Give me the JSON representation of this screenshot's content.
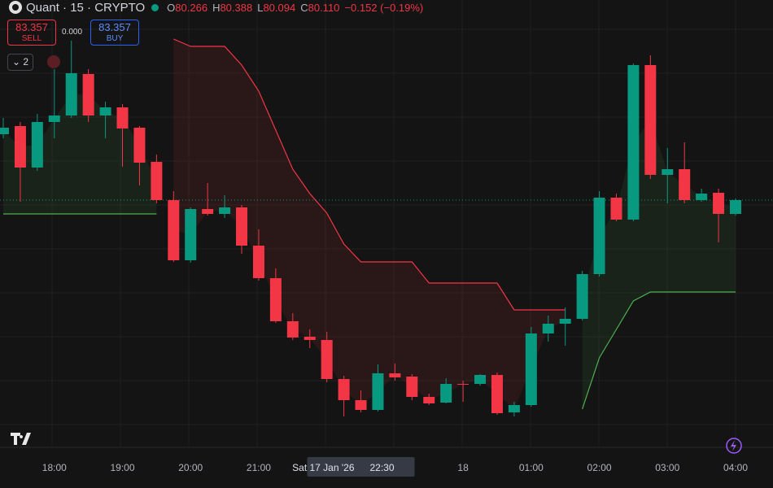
{
  "header": {
    "symbol": "Quant · 15 · CRYPTO",
    "o_label": "O",
    "open": "80.266",
    "h_label": "H",
    "high": "80.388",
    "l_label": "L",
    "low": "80.094",
    "c_label": "C",
    "close": "80.110",
    "change": "−0.152 (−0.19%)"
  },
  "trade": {
    "sell_price": "83.357",
    "sell_label": "SELL",
    "spread": "0.000",
    "buy_price": "83.357",
    "buy_label": "BUY"
  },
  "indicators_count": "2",
  "chart_data": {
    "type": "candlestick",
    "up_color": "#089981",
    "down_color": "#f23645",
    "ylim": [
      75,
      86
    ],
    "crosshair_date": "Sat 17 Jan '26",
    "crosshair_index": 21,
    "last_price": 81.08,
    "categories": [
      null,
      null,
      null,
      "18:00",
      null,
      null,
      null,
      "19:00",
      null,
      null,
      null,
      "20:00",
      null,
      null,
      null,
      "21:00",
      null,
      null,
      null,
      null,
      null,
      "22:30",
      null,
      null,
      null,
      null,
      null,
      "18",
      null,
      null,
      null,
      "01:00",
      null,
      null,
      null,
      "02:00",
      null,
      null,
      null,
      "03:00",
      null,
      null,
      null,
      "04:00"
    ],
    "open": [
      82.7,
      82.9,
      81.88,
      83.0,
      83.16,
      84.18,
      83.16,
      83.36,
      82.86,
      82.02,
      81.08,
      79.6,
      80.86,
      80.74,
      80.9,
      79.96,
      79.16,
      78.1,
      77.72,
      77.64,
      76.68,
      76.16,
      75.92,
      76.82,
      76.74,
      76.24,
      76.1,
      76.56,
      76.56,
      76.78,
      75.86,
      76.04,
      77.8,
      78.04,
      78.16,
      79.26,
      81.14,
      80.6,
      84.4,
      81.7,
      81.84,
      81.08,
      81.26,
      80.74
    ],
    "high": [
      83.1,
      83.0,
      83.2,
      84.3,
      85.0,
      84.3,
      83.5,
      83.44,
      82.9,
      82.2,
      81.3,
      80.9,
      81.5,
      81.2,
      80.96,
      80.36,
      79.4,
      78.3,
      77.9,
      77.84,
      76.76,
      76.4,
      77.04,
      77.06,
      76.8,
      76.32,
      76.7,
      76.64,
      76.8,
      76.84,
      76.12,
      77.96,
      78.24,
      78.44,
      79.34,
      81.3,
      81.24,
      84.44,
      84.64,
      82.36,
      82.5,
      81.36,
      81.36,
      81.12
    ],
    "low": [
      82.6,
      81.04,
      81.8,
      82.6,
      83.1,
      83.0,
      82.6,
      81.9,
      81.44,
      81.0,
      79.56,
      79.54,
      80.7,
      80.64,
      79.76,
      79.1,
      78.06,
      77.64,
      77.44,
      76.6,
      75.76,
      75.86,
      75.88,
      76.64,
      76.16,
      76.04,
      76.08,
      76.12,
      76.52,
      75.8,
      75.76,
      76.0,
      77.6,
      77.5,
      78.12,
      79.2,
      80.56,
      80.56,
      81.6,
      81.0,
      81.0,
      81.04,
      80.04,
      80.7
    ],
    "close": [
      82.86,
      81.88,
      83.0,
      83.16,
      84.2,
      83.16,
      83.36,
      82.84,
      82.0,
      81.08,
      79.6,
      80.86,
      80.74,
      80.9,
      79.96,
      79.16,
      78.1,
      77.7,
      77.64,
      76.68,
      76.16,
      75.92,
      76.82,
      76.72,
      76.24,
      76.08,
      76.56,
      76.54,
      76.78,
      75.84,
      76.04,
      77.8,
      78.04,
      78.16,
      79.26,
      81.14,
      80.6,
      84.4,
      81.7,
      81.84,
      81.08,
      81.24,
      80.74,
      81.08
    ],
    "series": [
      {
        "color": "#f23645",
        "values": [
          null,
          null,
          null,
          null,
          null,
          null,
          null,
          null,
          null,
          null,
          85.04,
          84.86,
          84.86,
          84.86,
          84.4,
          83.76,
          82.8,
          81.84,
          81.24,
          80.76,
          80.0,
          79.56,
          79.56,
          79.56,
          79.56,
          79.04,
          79.04,
          79.04,
          79.04,
          79.04,
          78.38,
          78.38,
          78.38,
          78.38,
          null,
          null,
          null,
          null,
          null,
          null,
          null,
          null,
          null,
          null
        ]
      },
      {
        "color": "#4caf50",
        "values": [
          80.74,
          80.74,
          80.74,
          80.74,
          80.74,
          80.74,
          80.74,
          80.74,
          80.74,
          80.74,
          null,
          null,
          null,
          null,
          null,
          null,
          null,
          null,
          null,
          null,
          null,
          null,
          null,
          null,
          null,
          null,
          null,
          null,
          null,
          null,
          null,
          null,
          null,
          null,
          75.94,
          77.2,
          77.9,
          78.6,
          78.82,
          78.82,
          78.82,
          78.82,
          78.82,
          78.82
        ]
      }
    ]
  }
}
